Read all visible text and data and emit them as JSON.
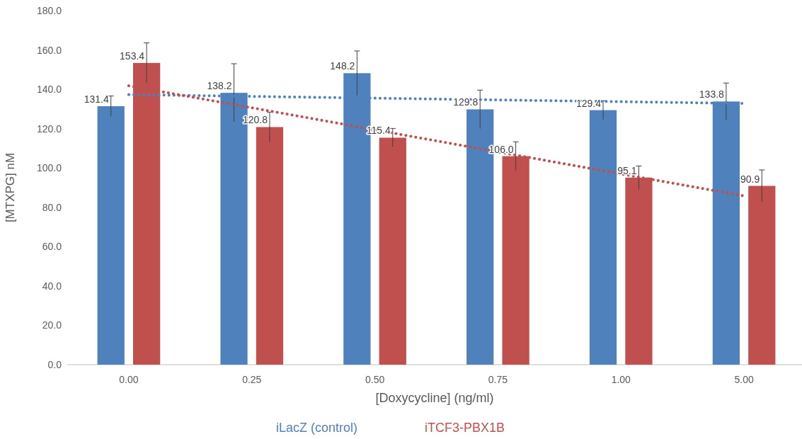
{
  "chart_data": {
    "type": "bar",
    "xlabel": "[Doxycycline] (ng/ml)",
    "ylabel": "[MTXPG] nM",
    "categories": [
      "0.00",
      "0.25",
      "0.50",
      "0.75",
      "1.00",
      "5.00"
    ],
    "series": [
      {
        "name": "iLacZ (control)",
        "color": "#4f81bd",
        "values": [
          131.4,
          138.2,
          148.2,
          129.8,
          129.4,
          133.8
        ],
        "value_labels": [
          "131.4",
          "138.2",
          "148.2",
          "129.8",
          "129.4",
          "133.8"
        ],
        "errors": [
          5.2,
          14.8,
          11.3,
          9.8,
          4.8,
          9.4
        ]
      },
      {
        "name": "iTCF3-PBX1B",
        "color": "#c0504d",
        "values": [
          153.4,
          120.8,
          115.4,
          106.0,
          95.1,
          90.9
        ],
        "value_labels": [
          "153.4",
          "120.8",
          "115.4",
          "106.0",
          "95.1",
          "90.9"
        ],
        "errors": [
          10.2,
          7.6,
          4.7,
          7.3,
          5.9,
          8.1
        ]
      },
      {
        "type": "line",
        "color": "#4f81bd",
        "line_style": "dotted",
        "x": [
          "0.00",
          "5.00"
        ],
        "values": [
          137.3,
          132.8
        ]
      },
      {
        "type": "line",
        "color": "#c0504d",
        "line_style": "dotted",
        "x": [
          "0.00",
          "5.00"
        ],
        "values": [
          141.8,
          85.8
        ]
      }
    ],
    "ylim": [
      0,
      180
    ],
    "yticks": [
      {
        "value": 0,
        "label": "0.0"
      },
      {
        "value": 20,
        "label": "20.0"
      },
      {
        "value": 40,
        "label": "40.0"
      },
      {
        "value": 60,
        "label": "60.0"
      },
      {
        "value": 80,
        "label": "80.0"
      },
      {
        "value": 100,
        "label": "100.0"
      },
      {
        "value": 120,
        "label": "120.0"
      },
      {
        "value": 140,
        "label": "140.0"
      },
      {
        "value": 160,
        "label": "160.0"
      },
      {
        "value": 180,
        "label": "180.0"
      }
    ],
    "legend": "bottom"
  }
}
